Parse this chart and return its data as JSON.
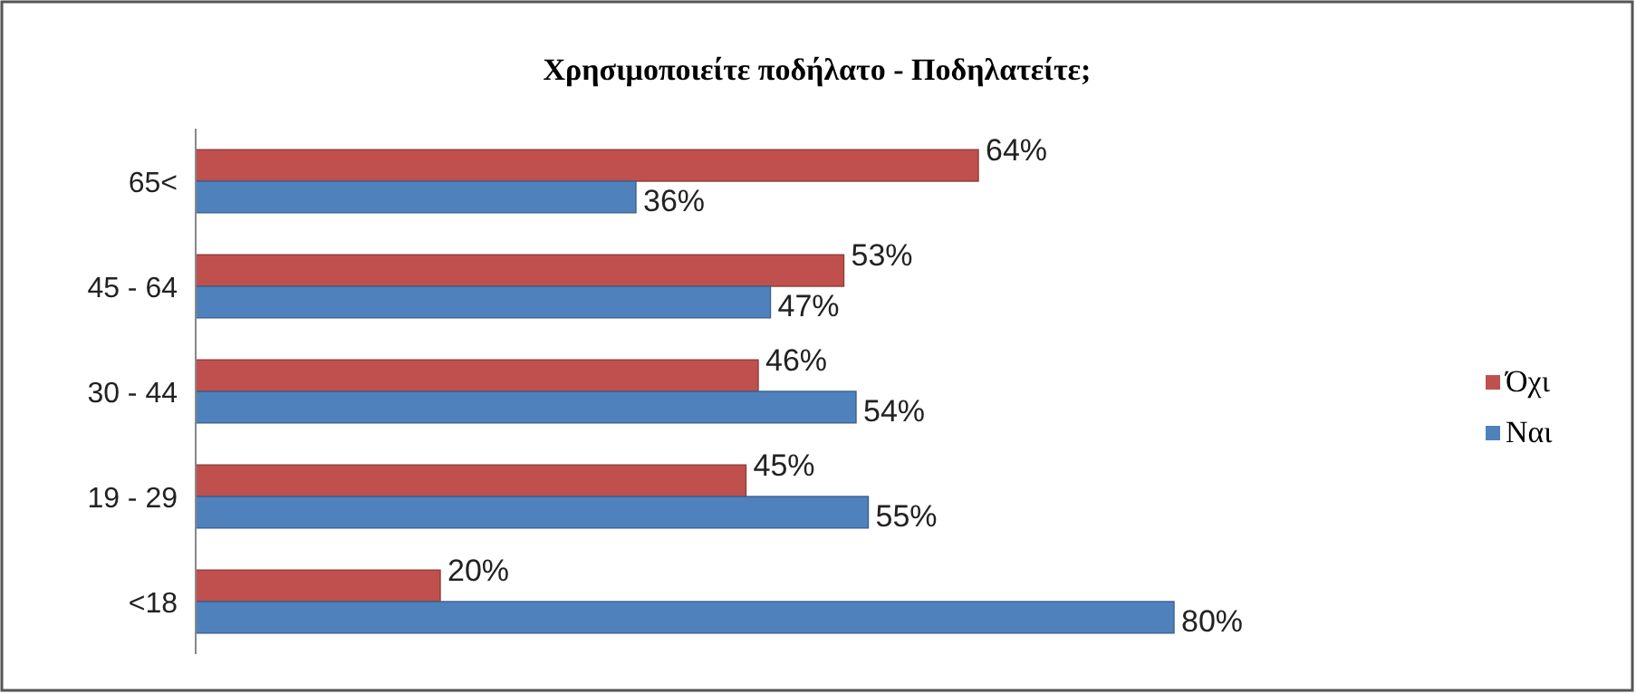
{
  "chart_data": {
    "type": "bar",
    "orientation": "horizontal",
    "title": "Χρησιμοποιείτε ποδήλατο - Ποδηλατείτε;",
    "categories": [
      "65<",
      "45 - 64",
      "30 - 44",
      "19 - 29",
      "<18"
    ],
    "series": [
      {
        "name": "Όχι",
        "color": "#c0504d",
        "values": [
          64,
          53,
          46,
          45,
          20
        ],
        "value_labels": [
          "64%",
          "53%",
          "46%",
          "45%",
          "20%"
        ]
      },
      {
        "name": "Ναι",
        "color": "#4f81bd",
        "values": [
          36,
          47,
          54,
          55,
          80
        ],
        "value_labels": [
          "36%",
          "47%",
          "54%",
          "55%",
          "80%"
        ]
      }
    ],
    "legend": "right"
  }
}
